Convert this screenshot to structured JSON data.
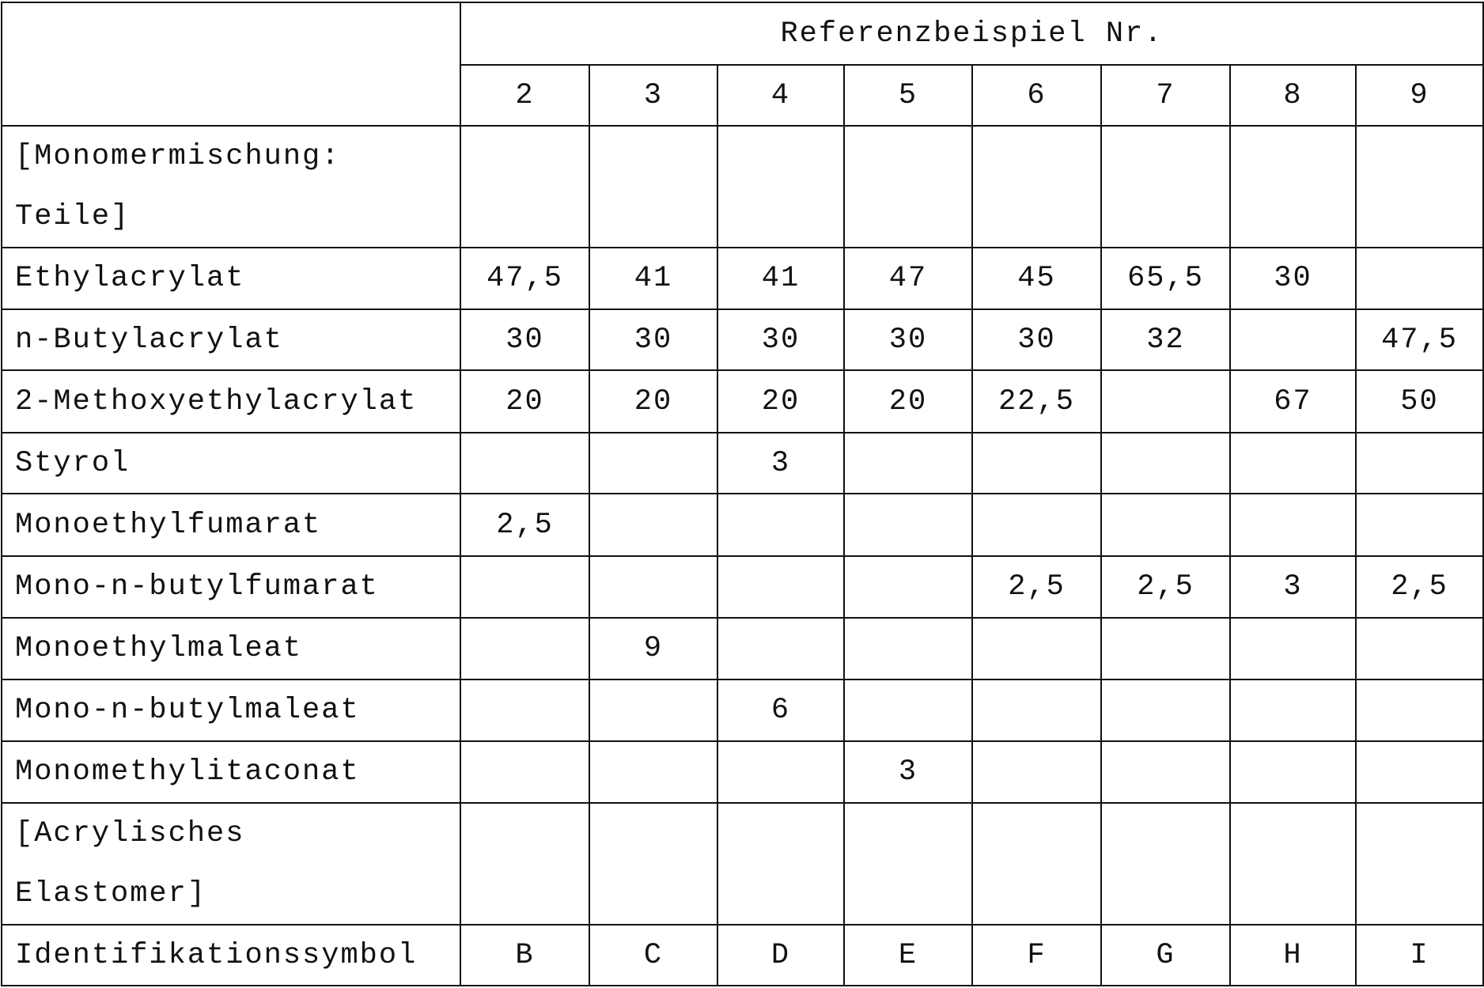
{
  "header": {
    "group_title": "Referenzbeispiel Nr.",
    "columns": [
      "2",
      "3",
      "4",
      "5",
      "6",
      "7",
      "8",
      "9"
    ]
  },
  "rows": [
    {
      "label": [
        "[Monomermischung:",
        "Teile]"
      ],
      "values": [
        "",
        "",
        "",
        "",
        "",
        "",
        "",
        ""
      ]
    },
    {
      "label": "Ethylacrylat",
      "values": [
        "47,5",
        "41",
        "41",
        "47",
        "45",
        "65,5",
        "30",
        ""
      ]
    },
    {
      "label": "n-Butylacrylat",
      "values": [
        "30",
        "30",
        "30",
        "30",
        "30",
        "32",
        "",
        "47,5"
      ]
    },
    {
      "label": "2-Methoxyethylacrylat",
      "values": [
        "20",
        "20",
        "20",
        "20",
        "22,5",
        "",
        "67",
        "50"
      ]
    },
    {
      "label": "Styrol",
      "values": [
        "",
        "",
        "3",
        "",
        "",
        "",
        "",
        ""
      ]
    },
    {
      "label": "Monoethylfumarat",
      "values": [
        "2,5",
        "",
        "",
        "",
        "",
        "",
        "",
        ""
      ]
    },
    {
      "label": "Mono-n-butylfumarat",
      "values": [
        "",
        "",
        "",
        "",
        "2,5",
        "2,5",
        "3",
        "2,5"
      ]
    },
    {
      "label": "Monoethylmaleat",
      "values": [
        "",
        "9",
        "",
        "",
        "",
        "",
        "",
        ""
      ]
    },
    {
      "label": "Mono-n-butylmaleat",
      "values": [
        "",
        "",
        "6",
        "",
        "",
        "",
        "",
        ""
      ]
    },
    {
      "label": "Monomethylitaconat",
      "values": [
        "",
        "",
        "",
        "3",
        "",
        "",
        "",
        ""
      ]
    },
    {
      "label": [
        "[Acrylisches",
        "Elastomer]"
      ],
      "values": [
        "",
        "",
        "",
        "",
        "",
        "",
        "",
        ""
      ]
    },
    {
      "label": "Identifikationssymbol",
      "values": [
        "B",
        "C",
        "D",
        "E",
        "F",
        "G",
        "H",
        "I"
      ]
    }
  ]
}
